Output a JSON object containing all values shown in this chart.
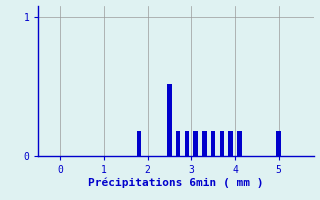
{
  "xlabel": "Précipitations 6min ( mm )",
  "xlabel_color": "#0000cc",
  "bar_color": "#0000cc",
  "bg_color": "#dff2f2",
  "axis_color": "#0000cc",
  "grid_color": "#999999",
  "tick_color": "#0000cc",
  "xlim": [
    -0.5,
    5.8
  ],
  "ylim": [
    0,
    1.08
  ],
  "yticks": [
    0,
    1
  ],
  "xticks": [
    0,
    1,
    2,
    3,
    4,
    5
  ],
  "bar_positions": [
    1.8,
    2.5,
    2.7,
    2.9,
    3.1,
    3.3,
    3.5,
    3.7,
    3.9,
    4.1,
    5.0
  ],
  "bar_heights": [
    0.18,
    0.52,
    0.18,
    0.18,
    0.18,
    0.18,
    0.18,
    0.18,
    0.18,
    0.18,
    0.18
  ],
  "bar_width": 0.1
}
